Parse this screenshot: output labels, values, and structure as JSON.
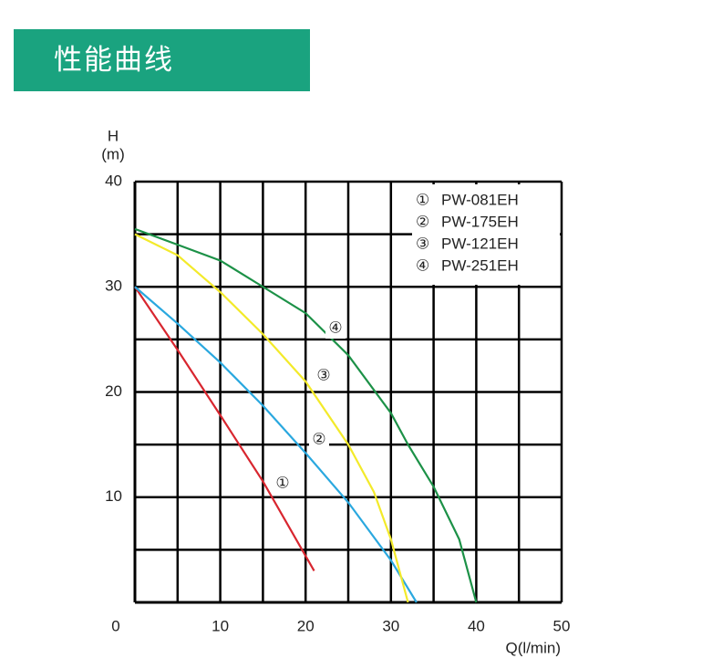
{
  "header": {
    "title": "性能曲线"
  },
  "chart_data": {
    "type": "line",
    "y_label_top": "H",
    "y_label_unit": "(m)",
    "x_label": "Q(l/min)",
    "xlim": [
      0,
      50
    ],
    "ylim": [
      0,
      40
    ],
    "xticks": [
      0,
      10,
      20,
      30,
      40,
      50
    ],
    "yticks": [
      10,
      20,
      30,
      40
    ],
    "xgrid": [
      5,
      10,
      15,
      20,
      25,
      30,
      35,
      40,
      45,
      50
    ],
    "ygrid": [
      5,
      10,
      15,
      20,
      25,
      30,
      35,
      40
    ],
    "grid": true,
    "legend": "upper right",
    "series": [
      {
        "name": "PW-081EH",
        "label": "①",
        "color": "#d8262f",
        "x": [
          0,
          5,
          10,
          15,
          21
        ],
        "values": [
          30,
          24,
          17.8,
          11.5,
          3
        ]
      },
      {
        "name": "PW-175EH",
        "label": "②",
        "color": "#2aa8df",
        "x": [
          0,
          5,
          10,
          15,
          20,
          25,
          30,
          33
        ],
        "values": [
          30,
          26.5,
          22.8,
          18.7,
          14.2,
          9.5,
          4,
          0
        ]
      },
      {
        "name": "PW-121EH",
        "label": "③",
        "color": "#f3ea2a",
        "x": [
          0,
          5,
          10,
          15,
          20,
          25,
          28,
          30,
          32
        ],
        "values": [
          35,
          33,
          29.5,
          25.5,
          21,
          15,
          10.5,
          6,
          0
        ]
      },
      {
        "name": "PW-251EH",
        "label": "④",
        "color": "#1c9147",
        "x": [
          0,
          5,
          10,
          15,
          20,
          25,
          30,
          32,
          35,
          38,
          40
        ],
        "values": [
          35.5,
          34,
          32.5,
          30,
          27.5,
          23.5,
          18,
          15,
          11,
          6,
          0
        ]
      }
    ]
  }
}
